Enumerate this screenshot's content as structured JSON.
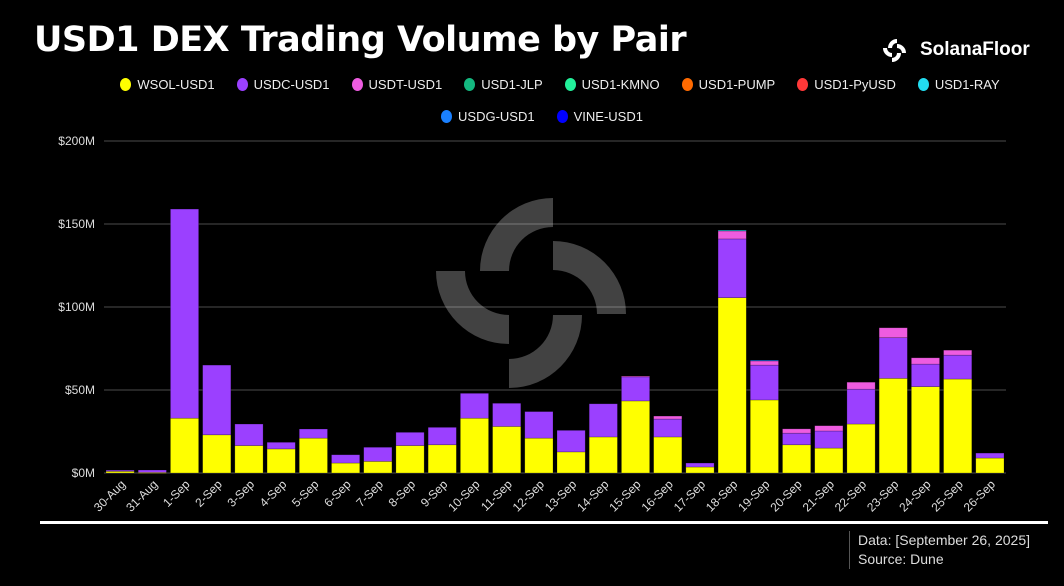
{
  "header": {
    "title": "USD1 DEX Trading Volume by Pair",
    "brand": "SolanaFloor"
  },
  "footer": {
    "data_note": "Data: [September 26, 2025]",
    "source": "Source: Dune"
  },
  "chart_data": {
    "type": "bar",
    "stacked": true,
    "title": "USD1 DEX Trading Volume by Pair",
    "xlabel": "",
    "ylabel": "",
    "ylim": [
      0,
      200
    ],
    "yunit": "M USD",
    "yticks": [
      "$0M",
      "$50M",
      "$100M",
      "$150M",
      "$200M"
    ],
    "grid": true,
    "legend_position": "top",
    "categories": [
      "30-Aug",
      "31-Aug",
      "1-Sep",
      "2-Sep",
      "3-Sep",
      "4-Sep",
      "5-Sep",
      "6-Sep",
      "7-Sep",
      "8-Sep",
      "9-Sep",
      "10-Sep",
      "11-Sep",
      "12-Sep",
      "13-Sep",
      "14-Sep",
      "15-Sep",
      "16-Sep",
      "17-Sep",
      "18-Sep",
      "19-Sep",
      "20-Sep",
      "21-Sep",
      "22-Sep",
      "23-Sep",
      "24-Sep",
      "25-Sep",
      "26-Sep"
    ],
    "series": [
      {
        "name": "WSOL-USD1",
        "color": "#ffff00",
        "values": [
          1,
          0.3,
          33,
          23,
          16.5,
          14.5,
          21,
          6,
          7,
          16.5,
          17,
          33,
          28,
          21,
          12.7,
          21.7,
          43.4,
          21.7,
          3.6,
          105.6,
          44,
          17,
          15,
          29.5,
          57,
          52,
          56.6,
          9
        ]
      },
      {
        "name": "USDC-USD1",
        "color": "#9b40ff",
        "values": [
          0.7,
          1.5,
          126,
          42,
          13,
          4,
          5.5,
          5,
          8.5,
          8,
          10.5,
          15,
          14,
          16,
          13,
          20,
          14.5,
          10.8,
          2.4,
          35.4,
          21,
          7,
          10.3,
          21,
          24.5,
          13.6,
          14.4,
          3
        ]
      },
      {
        "name": "USDT-USD1",
        "color": "#ee5ce0",
        "values": [
          0,
          0,
          0,
          0,
          0,
          0,
          0,
          0,
          0,
          0,
          0,
          0,
          0,
          0,
          0,
          0,
          0.5,
          1.8,
          0,
          4.8,
          2.5,
          2.6,
          3.2,
          4.2,
          6,
          3.8,
          3,
          0
        ]
      },
      {
        "name": "USD1-JLP",
        "color": "#14b880",
        "values": [
          0,
          0,
          0,
          0,
          0,
          0,
          0,
          0,
          0,
          0,
          0,
          0,
          0,
          0,
          0,
          0,
          0,
          0,
          0,
          0,
          0,
          0,
          0,
          0,
          0,
          0,
          0,
          0
        ]
      },
      {
        "name": "USD1-KMNO",
        "color": "#22f09a",
        "values": [
          0,
          0,
          0,
          0,
          0,
          0,
          0,
          0,
          0,
          0,
          0,
          0,
          0,
          0,
          0,
          0,
          0,
          0,
          0,
          0,
          0,
          0,
          0,
          0,
          0,
          0,
          0,
          0
        ]
      },
      {
        "name": "USD1-PUMP",
        "color": "#ff6a00",
        "values": [
          0,
          0,
          0,
          0,
          0,
          0,
          0,
          0,
          0,
          0,
          0,
          0,
          0,
          0,
          0,
          0,
          0,
          0,
          0,
          0,
          0,
          0,
          0,
          0,
          0,
          0,
          0,
          0
        ]
      },
      {
        "name": "USD1-PyUSD",
        "color": "#ff3838",
        "values": [
          0,
          0,
          0,
          0,
          0,
          0,
          0,
          0,
          0,
          0,
          0,
          0,
          0,
          0,
          0,
          0,
          0,
          0,
          0,
          0,
          0,
          0,
          0,
          0,
          0,
          0,
          0,
          0
        ]
      },
      {
        "name": "USD1-RAY",
        "color": "#22dcf0",
        "values": [
          0,
          0,
          0,
          0,
          0,
          0,
          0,
          0,
          0,
          0,
          0,
          0,
          0,
          0,
          0,
          0,
          0,
          0,
          0,
          0.5,
          0,
          0,
          0,
          0,
          0,
          0,
          0,
          0
        ]
      },
      {
        "name": "USDG-USD1",
        "color": "#1a80ff",
        "values": [
          0,
          0,
          0,
          0,
          0,
          0,
          0,
          0,
          0,
          0,
          0,
          0,
          0,
          0,
          0,
          0,
          0,
          0,
          0,
          0,
          0.5,
          0,
          0,
          0,
          0,
          0,
          0,
          0
        ]
      },
      {
        "name": "VINE-USD1",
        "color": "#0000ff",
        "values": [
          0,
          0,
          0,
          0,
          0,
          0,
          0,
          0,
          0,
          0,
          0,
          0,
          0,
          0,
          0,
          0,
          0,
          0,
          0,
          0,
          0,
          0,
          0,
          0,
          0,
          0,
          0,
          0
        ]
      }
    ]
  }
}
